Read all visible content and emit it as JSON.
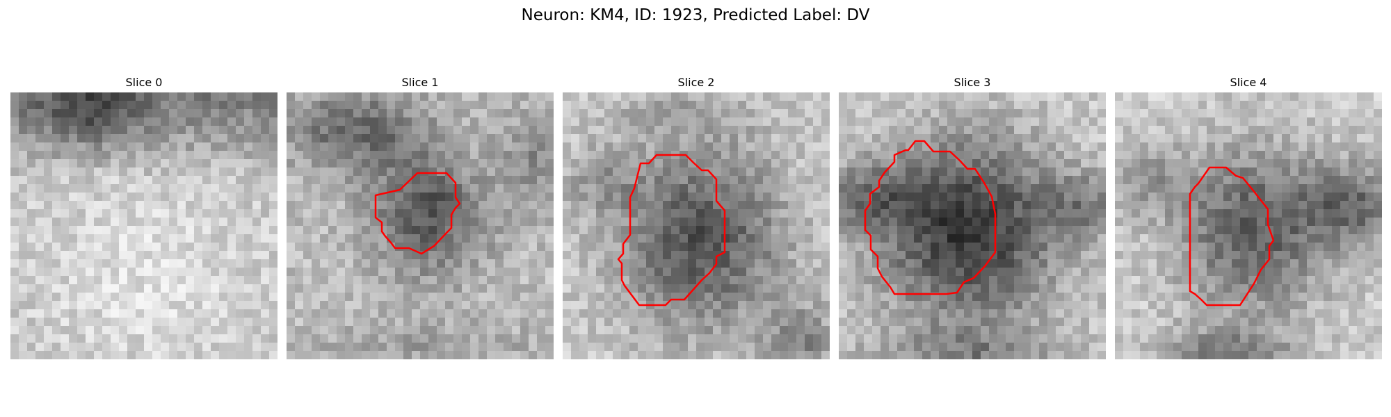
{
  "figure": {
    "title": "Neuron: KM4, ID: 1923, Predicted Label: DV"
  },
  "colors": {
    "contour": "#ff0000"
  },
  "panels": [
    {
      "title": "Slice 0",
      "has_contour": false
    },
    {
      "title": "Slice 1",
      "has_contour": true
    },
    {
      "title": "Slice 2",
      "has_contour": true
    },
    {
      "title": "Slice 3",
      "has_contour": true
    },
    {
      "title": "Slice 4",
      "has_contour": true
    }
  ]
}
